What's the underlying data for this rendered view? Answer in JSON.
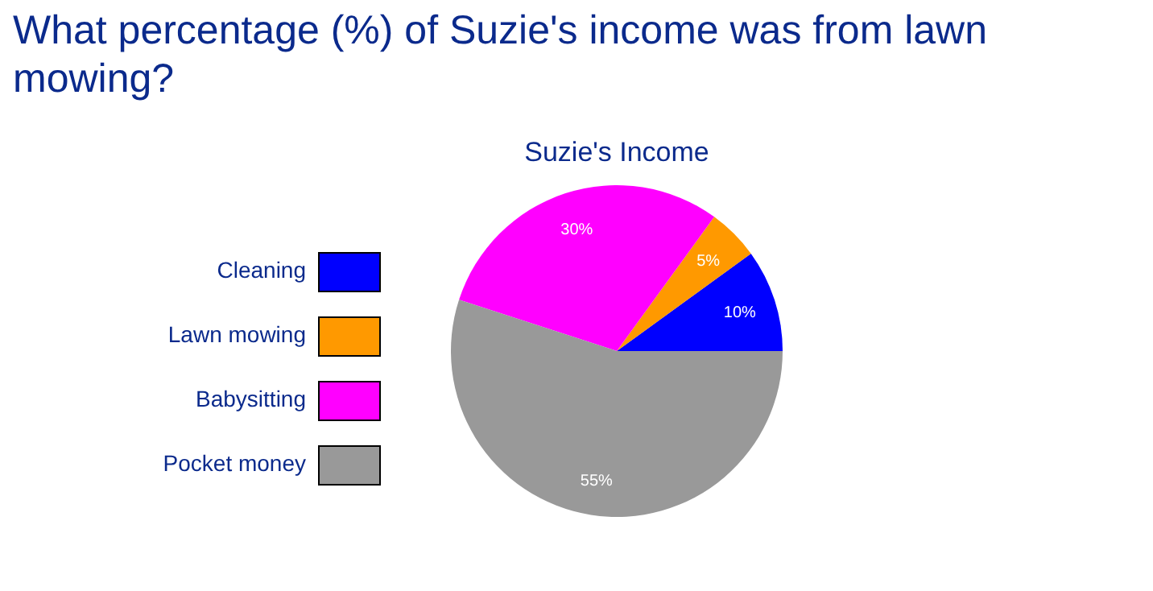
{
  "chart_data": {
    "type": "pie",
    "title": "What percentage (%) of Suzie's income was from lawn mowing?",
    "subtitle": "Suzie's Income",
    "categories": [
      "Cleaning",
      "Lawn mowing",
      "Babysitting",
      "Pocket money"
    ],
    "values": [
      10,
      5,
      30,
      55
    ],
    "colors": [
      "#0000ff",
      "#ff9900",
      "#ff00ff",
      "#999999"
    ],
    "value_labels": [
      "10%",
      "5%",
      "30%",
      "55%"
    ],
    "legend": "left"
  }
}
